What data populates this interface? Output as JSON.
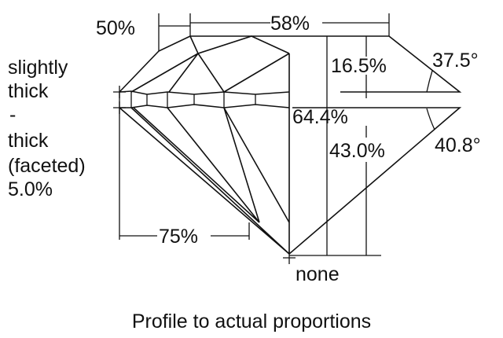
{
  "labels": {
    "crown_height_pct": "50%",
    "table_pct": "58%",
    "girdle_line1": "slightly",
    "girdle_line2": "thick",
    "girdle_line3": "-",
    "girdle_line4": "thick",
    "girdle_line5": "(faceted)",
    "girdle_line6": "5.0%",
    "crown_depth_pct": "16.5%",
    "crown_angle": "37.5°",
    "total_depth_pct": "64.4%",
    "pavilion_depth_pct": "43.0%",
    "pavilion_angle": "40.8°",
    "lower_half_pct": "75%",
    "culet": "none"
  },
  "caption": "Profile to actual proportions"
}
